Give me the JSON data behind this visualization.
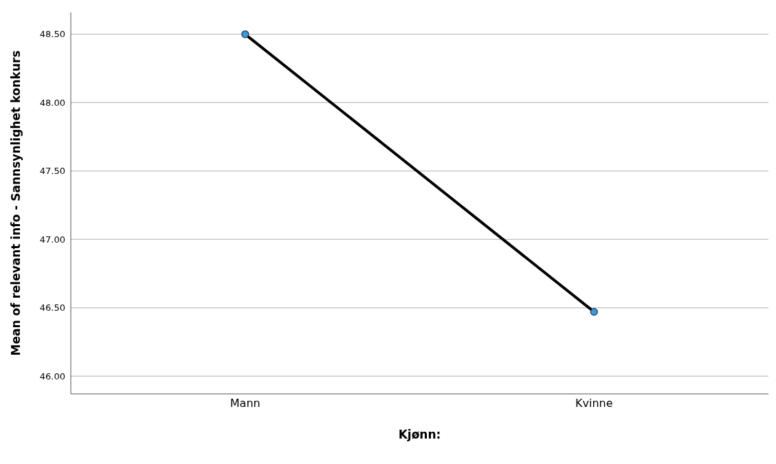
{
  "chart_data": {
    "type": "line",
    "xlabel": "Kjønn:",
    "ylabel": "Mean of relevant info - Sannsynlighet konkurs",
    "categories": [
      "Mann",
      "Kvinne"
    ],
    "series": [
      {
        "color": "#000000",
        "values": [
          48.5,
          46.47
        ]
      }
    ],
    "ylim": [
      45.87,
      48.66
    ],
    "yticks": [
      {
        "value": 46,
        "label": "46.00"
      },
      {
        "value": 46.5,
        "label": "46.50"
      },
      {
        "value": 47,
        "label": "47.00"
      },
      {
        "value": 47.5,
        "label": "47.50"
      },
      {
        "value": 48,
        "label": "48.00"
      },
      {
        "value": 48.5,
        "label": "48.50"
      }
    ],
    "grid": "y",
    "marker": "circle",
    "line_style": "solid"
  }
}
